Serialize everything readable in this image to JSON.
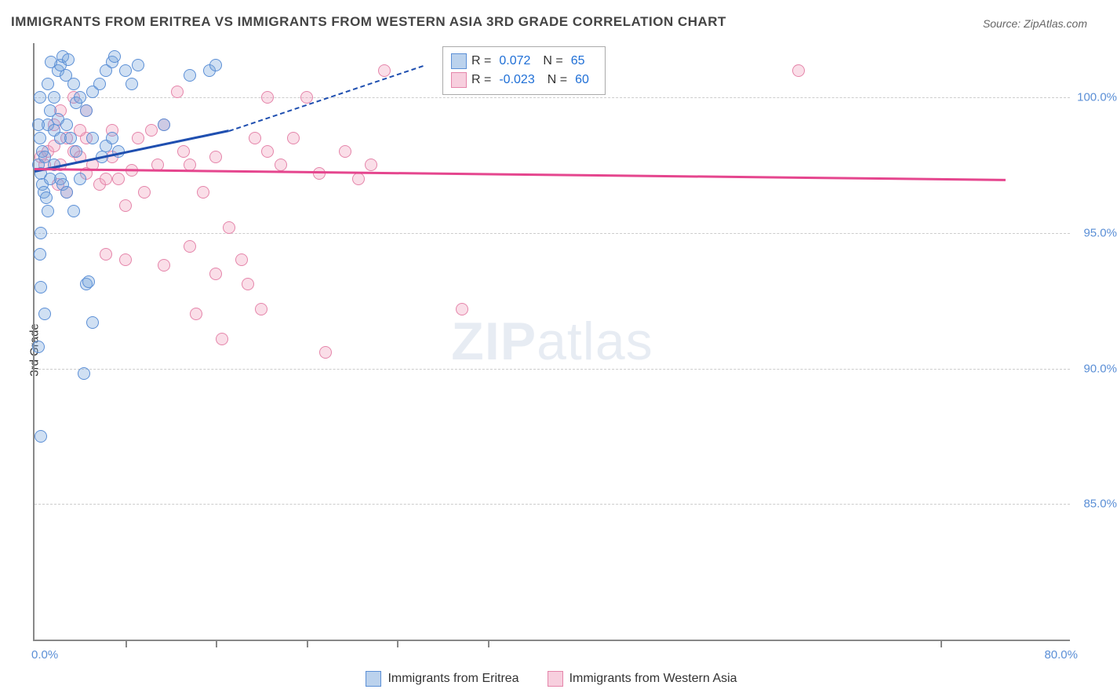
{
  "title": "IMMIGRANTS FROM ERITREA VS IMMIGRANTS FROM WESTERN ASIA 3RD GRADE CORRELATION CHART",
  "source": "Source: ZipAtlas.com",
  "ylabel": "3rd Grade",
  "watermark_a": "ZIP",
  "watermark_b": "atlas",
  "chart": {
    "type": "scatter",
    "xlim": [
      0,
      80
    ],
    "ylim": [
      80,
      102
    ],
    "x_tick_left": "0.0%",
    "x_tick_right": "80.0%",
    "x_minor_ticks": [
      7,
      14,
      21,
      28,
      35,
      70
    ],
    "y_ticks": [
      {
        "v": 85,
        "label": "85.0%"
      },
      {
        "v": 90,
        "label": "90.0%"
      },
      {
        "v": 95,
        "label": "95.0%"
      },
      {
        "v": 100,
        "label": "100.0%"
      }
    ],
    "marker_size": 16,
    "background_color": "#ffffff",
    "grid_color": "#cccccc",
    "colors": {
      "blue_fill": "rgba(120,165,220,0.35)",
      "blue_stroke": "#5b8fd6",
      "pink_fill": "rgba(240,160,190,0.35)",
      "pink_stroke": "#e585aa",
      "trend_blue": "#1f4fb0",
      "trend_pink": "#e5468e",
      "tick_text": "#5b8fd6"
    },
    "series_blue": {
      "label": "Immigrants from Eritrea",
      "points": [
        [
          0.3,
          97.5
        ],
        [
          0.5,
          97.2
        ],
        [
          0.6,
          98.0
        ],
        [
          0.8,
          97.8
        ],
        [
          0.4,
          98.5
        ],
        [
          1.0,
          99.0
        ],
        [
          1.2,
          99.5
        ],
        [
          1.5,
          100.0
        ],
        [
          1.8,
          101.0
        ],
        [
          2.0,
          101.2
        ],
        [
          2.2,
          101.5
        ],
        [
          2.4,
          100.8
        ],
        [
          2.6,
          101.4
        ],
        [
          3.0,
          100.5
        ],
        [
          3.2,
          99.8
        ],
        [
          0.6,
          96.8
        ],
        [
          0.7,
          96.5
        ],
        [
          0.9,
          96.3
        ],
        [
          1.0,
          95.8
        ],
        [
          0.5,
          95.0
        ],
        [
          0.4,
          94.2
        ],
        [
          1.5,
          98.8
        ],
        [
          1.8,
          99.2
        ],
        [
          2.0,
          98.5
        ],
        [
          2.5,
          99.0
        ],
        [
          3.5,
          100.0
        ],
        [
          4.0,
          99.5
        ],
        [
          4.5,
          100.2
        ],
        [
          5.0,
          100.5
        ],
        [
          5.5,
          101.0
        ],
        [
          6.0,
          101.3
        ],
        [
          6.2,
          101.5
        ],
        [
          7.0,
          101.0
        ],
        [
          7.5,
          100.5
        ],
        [
          8.0,
          101.2
        ],
        [
          0.5,
          93.0
        ],
        [
          0.8,
          92.0
        ],
        [
          1.2,
          97.0
        ],
        [
          1.5,
          97.5
        ],
        [
          2.0,
          97.0
        ],
        [
          2.2,
          96.8
        ],
        [
          2.5,
          96.5
        ],
        [
          3.0,
          95.8
        ],
        [
          3.5,
          97.0
        ],
        [
          4.0,
          93.1
        ],
        [
          4.2,
          93.2
        ],
        [
          4.5,
          91.7
        ],
        [
          3.8,
          89.8
        ],
        [
          0.3,
          90.8
        ],
        [
          0.5,
          87.5
        ],
        [
          13.5,
          101.0
        ],
        [
          14.0,
          101.2
        ],
        [
          12.0,
          100.8
        ],
        [
          10.0,
          99.0
        ],
        [
          5.2,
          97.8
        ],
        [
          5.5,
          98.2
        ],
        [
          6.0,
          98.5
        ],
        [
          6.5,
          98.0
        ],
        [
          0.3,
          99.0
        ],
        [
          0.4,
          100.0
        ],
        [
          1.0,
          100.5
        ],
        [
          1.3,
          101.3
        ],
        [
          2.8,
          98.5
        ],
        [
          3.2,
          98.0
        ],
        [
          4.5,
          98.5
        ]
      ],
      "trend": {
        "x1": 0,
        "y1": 97.3,
        "x2": 15,
        "y2": 98.8,
        "dash_x2": 30,
        "dash_y2": 101.2
      }
    },
    "series_pink": {
      "label": "Immigrants from Western Asia",
      "points": [
        [
          0.5,
          97.8
        ],
        [
          0.8,
          97.5
        ],
        [
          1.0,
          98.0
        ],
        [
          1.5,
          98.2
        ],
        [
          2.0,
          97.5
        ],
        [
          2.5,
          98.5
        ],
        [
          3.0,
          98.0
        ],
        [
          3.5,
          97.8
        ],
        [
          4.0,
          97.2
        ],
        [
          4.5,
          97.5
        ],
        [
          5.0,
          96.8
        ],
        [
          5.5,
          97.0
        ],
        [
          6.0,
          98.8
        ],
        [
          6.5,
          97.0
        ],
        [
          7.0,
          96.0
        ],
        [
          7.5,
          97.3
        ],
        [
          8.0,
          98.5
        ],
        [
          8.5,
          96.5
        ],
        [
          9.0,
          98.8
        ],
        [
          9.5,
          97.5
        ],
        [
          10.0,
          99.0
        ],
        [
          11.0,
          100.2
        ],
        [
          11.5,
          98.0
        ],
        [
          12.0,
          97.5
        ],
        [
          13.0,
          96.5
        ],
        [
          14.0,
          97.8
        ],
        [
          15.0,
          95.2
        ],
        [
          16.0,
          94.0
        ],
        [
          17.0,
          98.5
        ],
        [
          18.0,
          98.0
        ],
        [
          19.0,
          97.5
        ],
        [
          20.0,
          98.5
        ],
        [
          21.0,
          100.0
        ],
        [
          22.0,
          97.2
        ],
        [
          24.0,
          98.0
        ],
        [
          25.0,
          97.0
        ],
        [
          26.0,
          97.5
        ],
        [
          27.0,
          101.0
        ],
        [
          5.5,
          94.2
        ],
        [
          12.5,
          92.0
        ],
        [
          14.5,
          91.1
        ],
        [
          16.5,
          93.1
        ],
        [
          17.5,
          92.2
        ],
        [
          22.5,
          90.6
        ],
        [
          33.0,
          92.2
        ],
        [
          18.0,
          100.0
        ],
        [
          7.0,
          94.0
        ],
        [
          4.0,
          99.5
        ],
        [
          3.0,
          100.0
        ],
        [
          2.0,
          99.5
        ],
        [
          1.5,
          99.0
        ],
        [
          59.0,
          101.0
        ],
        [
          10.0,
          93.8
        ],
        [
          12.0,
          94.5
        ],
        [
          14.0,
          93.5
        ],
        [
          6.0,
          97.8
        ],
        [
          4.0,
          98.5
        ],
        [
          3.5,
          98.8
        ],
        [
          2.5,
          96.5
        ],
        [
          1.8,
          96.8
        ]
      ],
      "trend": {
        "x1": 0,
        "y1": 97.4,
        "x2": 75,
        "y2": 97.0
      }
    }
  },
  "top_legend": {
    "rows": [
      {
        "swatch": "blue",
        "r_label": "R =",
        "r_val": "0.072",
        "n_label": "N =",
        "n_val": "65"
      },
      {
        "swatch": "pink",
        "r_label": "R =",
        "r_val": "-0.023",
        "n_label": "N =",
        "n_val": "60"
      }
    ]
  },
  "bottom_legend": {
    "items": [
      {
        "swatch": "blue",
        "label": "Immigrants from Eritrea"
      },
      {
        "swatch": "pink",
        "label": "Immigrants from Western Asia"
      }
    ]
  }
}
